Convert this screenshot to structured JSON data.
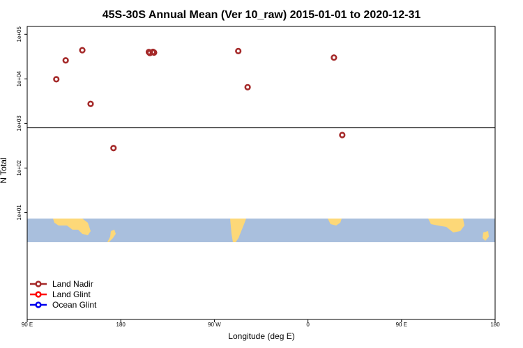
{
  "chart_data": {
    "type": "scatter",
    "title": "45S-30S Annual Mean (Ver 10_raw)   2015-01-01 to 2020-12-31",
    "xlabel": "Longitude (deg E)",
    "ylabel": "N Total",
    "x_axis": {
      "min_deg_e": 90,
      "max_deg_e": 540,
      "ticks": [
        {
          "value": 90,
          "label": "90 E"
        },
        {
          "value": 180,
          "label": "180"
        },
        {
          "value": 270,
          "label": "90 W"
        },
        {
          "value": 360,
          "label": "0"
        },
        {
          "value": 450,
          "label": "90 E"
        },
        {
          "value": 540,
          "label": "180"
        }
      ]
    },
    "y_axis": {
      "scale": "log",
      "min": 0.04,
      "max": 150000,
      "ticks": [
        {
          "value": 10,
          "label": "1e+01"
        },
        {
          "value": 100,
          "label": "1e+02"
        },
        {
          "value": 1000,
          "label": "1e+03"
        },
        {
          "value": 10000,
          "label": "1e+04"
        },
        {
          "value": 100000,
          "label": "1e+05"
        }
      ],
      "reference_line": 800
    },
    "legend": {
      "placement": "bottom-left",
      "entries": [
        {
          "name": "Land Nadir",
          "color": "#a52a2a"
        },
        {
          "name": "Land Glint",
          "color": "#ff0000"
        },
        {
          "name": "Ocean Glint",
          "color": "#0000ee"
        }
      ]
    },
    "series": [
      {
        "name": "Land Nadir",
        "color": "#a52a2a",
        "points": [
          {
            "x": 118,
            "y": 9800
          },
          {
            "x": 127,
            "y": 26000
          },
          {
            "x": 143,
            "y": 44000
          },
          {
            "x": 151,
            "y": 2750
          },
          {
            "x": 173,
            "y": 280
          },
          {
            "x": 293,
            "y": 42000
          },
          {
            "x": 302,
            "y": 6500
          },
          {
            "x": 385,
            "y": 30000
          },
          {
            "x": 393,
            "y": 550
          },
          {
            "x": 208,
            "y": 38000
          },
          {
            "x": 212,
            "y": 39000
          },
          {
            "x": 207,
            "y": 40000
          },
          {
            "x": 211,
            "y": 40000
          },
          {
            "x": 211,
            "y": 40000
          },
          {
            "x": 211,
            "y": 40000
          },
          {
            "x": 211,
            "y": 40000
          },
          {
            "x": 211,
            "y": 40000
          },
          {
            "x": 211,
            "y": 40000
          },
          {
            "x": 211,
            "y": 40000
          },
          {
            "x": 211,
            "y": 40000
          },
          {
            "x": 211,
            "y": 40000
          },
          {
            "x": 211,
            "y": 40000
          }
        ]
      }
    ]
  }
}
